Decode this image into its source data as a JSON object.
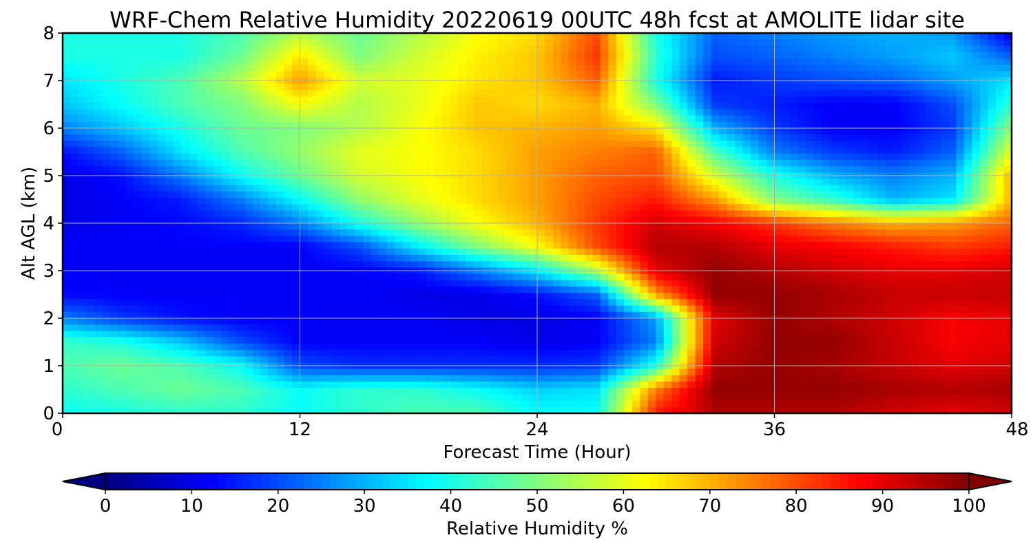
{
  "chart_data": {
    "type": "heatmap",
    "title": "WRF-Chem Relative Humidity 20220619 00UTC 48h fcst at AMOLITE lidar site",
    "xlabel": "Forecast Time (Hour)",
    "ylabel": "Alt AGL (km)",
    "xlim": [
      0,
      48
    ],
    "ylim": [
      0,
      8
    ],
    "xticks": [
      "0",
      "12",
      "24",
      "36",
      "48"
    ],
    "yticks": [
      "0",
      "1",
      "2",
      "3",
      "4",
      "5",
      "6",
      "7",
      "8"
    ],
    "grid": true,
    "colormap": "jet",
    "colorbar": {
      "label": "Relative Humidity %",
      "range": [
        0,
        100
      ],
      "ticks": [
        "0",
        "10",
        "20",
        "30",
        "40",
        "50",
        "60",
        "70",
        "80",
        "90",
        "100"
      ],
      "extend": "both",
      "orientation": "horizontal",
      "placement": "bottom"
    },
    "x": [
      0,
      3,
      6,
      9,
      12,
      15,
      18,
      21,
      24,
      27,
      30,
      33,
      36,
      39,
      42,
      45,
      48
    ],
    "y": [
      0,
      0.5,
      1,
      1.5,
      2,
      2.5,
      3,
      3.5,
      4,
      4.5,
      5,
      5.5,
      6,
      6.5,
      7,
      7.5,
      8
    ],
    "z": [
      [
        38,
        40,
        42,
        42,
        38,
        42,
        45,
        45,
        38,
        38,
        85,
        95,
        95,
        95,
        92,
        90,
        92
      ],
      [
        42,
        45,
        48,
        45,
        38,
        42,
        42,
        38,
        33,
        35,
        75,
        98,
        98,
        98,
        96,
        95,
        96
      ],
      [
        45,
        48,
        45,
        38,
        20,
        17,
        17,
        17,
        17,
        18,
        40,
        95,
        98,
        96,
        93,
        90,
        92
      ],
      [
        43,
        40,
        32,
        20,
        12,
        12,
        12,
        12,
        10,
        12,
        25,
        92,
        98,
        98,
        93,
        88,
        90
      ],
      [
        25,
        18,
        14,
        12,
        12,
        12,
        12,
        10,
        10,
        12,
        28,
        90,
        98,
        95,
        92,
        88,
        90
      ],
      [
        13,
        12,
        12,
        12,
        12,
        12,
        10,
        10,
        14,
        22,
        72,
        98,
        98,
        96,
        93,
        93,
        93
      ],
      [
        12,
        12,
        12,
        12,
        12,
        12,
        15,
        25,
        36,
        55,
        90,
        98,
        95,
        92,
        90,
        90,
        92
      ],
      [
        12,
        12,
        12,
        12,
        12,
        20,
        36,
        50,
        62,
        80,
        95,
        95,
        90,
        88,
        85,
        82,
        85
      ],
      [
        10,
        12,
        13,
        16,
        25,
        40,
        52,
        62,
        70,
        82,
        92,
        88,
        82,
        75,
        70,
        72,
        78
      ],
      [
        10,
        12,
        15,
        25,
        38,
        52,
        60,
        66,
        72,
        80,
        85,
        72,
        50,
        42,
        30,
        35,
        70
      ],
      [
        10,
        14,
        25,
        38,
        48,
        58,
        62,
        66,
        72,
        78,
        80,
        58,
        40,
        30,
        25,
        30,
        70
      ],
      [
        14,
        22,
        35,
        45,
        52,
        60,
        62,
        66,
        72,
        75,
        78,
        45,
        25,
        18,
        15,
        22,
        60
      ],
      [
        25,
        32,
        40,
        48,
        50,
        55,
        62,
        68,
        70,
        72,
        65,
        30,
        18,
        12,
        12,
        18,
        52
      ],
      [
        32,
        38,
        45,
        50,
        62,
        55,
        60,
        68,
        66,
        70,
        50,
        18,
        15,
        12,
        12,
        20,
        42
      ],
      [
        35,
        40,
        45,
        55,
        72,
        58,
        60,
        65,
        68,
        78,
        40,
        15,
        18,
        20,
        22,
        28,
        35
      ],
      [
        40,
        40,
        40,
        48,
        65,
        50,
        58,
        64,
        68,
        82,
        42,
        20,
        22,
        25,
        28,
        32,
        22
      ],
      [
        40,
        40,
        40,
        45,
        55,
        48,
        55,
        62,
        66,
        80,
        40,
        22,
        25,
        28,
        30,
        28,
        10
      ]
    ]
  }
}
